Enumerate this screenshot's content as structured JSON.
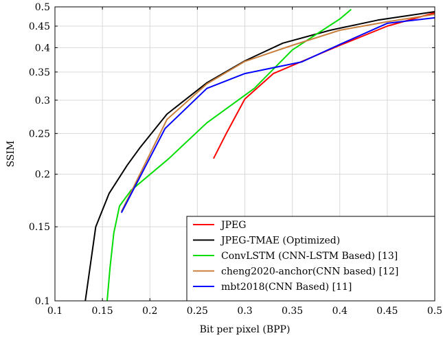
{
  "chart_data": {
    "type": "line",
    "title": "",
    "xlabel": "Bit per pixel (BPP)",
    "ylabel": "SSIM",
    "xlim": [
      0.1,
      0.5
    ],
    "ylim": [
      0.1,
      0.5
    ],
    "yscale": "log",
    "grid": true,
    "legend_position": "bottom-right",
    "x_ticks": [
      "0.1",
      "0.15",
      "0.2",
      "0.25",
      "0.3",
      "0.35",
      "0.4",
      "0.45",
      "0.5"
    ],
    "y_ticks": [
      {
        "value": 0.1,
        "label": "0.1"
      },
      {
        "value": 0.15,
        "label": "0.15"
      },
      {
        "value": 0.2,
        "label": "0.2"
      },
      {
        "value": 0.25,
        "label": "0.25"
      },
      {
        "value": 0.3,
        "label": "0.3"
      },
      {
        "value": 0.35,
        "label": "0.35"
      },
      {
        "value": 0.4,
        "label": "0.4"
      },
      {
        "value": 0.45,
        "label": "0.45"
      },
      {
        "value": 0.5,
        "label": "0.5"
      }
    ],
    "series": [
      {
        "name": "JPEG",
        "color": "#ff0000",
        "points": [
          [
            0.267,
            0.218
          ],
          [
            0.28,
            0.249
          ],
          [
            0.3,
            0.302
          ],
          [
            0.33,
            0.347
          ],
          [
            0.4,
            0.405
          ],
          [
            0.45,
            0.45
          ],
          [
            0.5,
            0.484
          ]
        ]
      },
      {
        "name": "JPEG-TMAE (Optimized)",
        "color": "#000000",
        "points": [
          [
            0.132,
            0.1
          ],
          [
            0.143,
            0.15
          ],
          [
            0.157,
            0.18
          ],
          [
            0.176,
            0.21
          ],
          [
            0.19,
            0.232
          ],
          [
            0.218,
            0.278
          ],
          [
            0.26,
            0.33
          ],
          [
            0.3,
            0.372
          ],
          [
            0.34,
            0.41
          ],
          [
            0.39,
            0.44
          ],
          [
            0.44,
            0.465
          ],
          [
            0.5,
            0.487
          ]
        ]
      },
      {
        "name": "ConvLSTM (CNN-LSTM Based) [13]",
        "color": "#00dd00",
        "points": [
          [
            0.155,
            0.1
          ],
          [
            0.158,
            0.12
          ],
          [
            0.162,
            0.145
          ],
          [
            0.168,
            0.168
          ],
          [
            0.18,
            0.183
          ],
          [
            0.22,
            0.218
          ],
          [
            0.26,
            0.265
          ],
          [
            0.31,
            0.32
          ],
          [
            0.35,
            0.395
          ],
          [
            0.4,
            0.468
          ],
          [
            0.412,
            0.493
          ]
        ]
      },
      {
        "name": "cheng2020-anchor(CNN based) [12]",
        "color": "#c87f3e",
        "points": [
          [
            0.17,
            0.163
          ],
          [
            0.218,
            0.27
          ],
          [
            0.26,
            0.328
          ],
          [
            0.3,
            0.371
          ],
          [
            0.35,
            0.405
          ],
          [
            0.4,
            0.44
          ],
          [
            0.45,
            0.461
          ],
          [
            0.5,
            0.48
          ]
        ]
      },
      {
        "name": "mbt2018(CNN Based) [11]",
        "color": "#0000ff",
        "points": [
          [
            0.17,
            0.162
          ],
          [
            0.216,
            0.257
          ],
          [
            0.26,
            0.32
          ],
          [
            0.3,
            0.347
          ],
          [
            0.36,
            0.37
          ],
          [
            0.4,
            0.407
          ],
          [
            0.45,
            0.457
          ],
          [
            0.5,
            0.471
          ]
        ]
      }
    ]
  }
}
